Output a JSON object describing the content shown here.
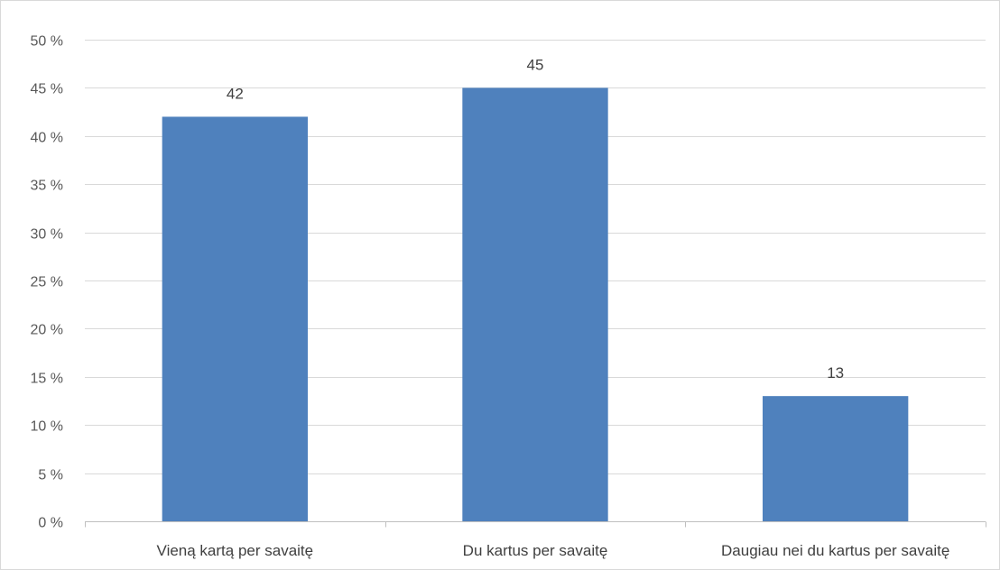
{
  "chart_data": {
    "type": "bar",
    "categories": [
      "Vieną kartą per savaitę",
      "Du kartus per savaitę",
      "Daugiau nei du kartus per savaitę"
    ],
    "values": [
      42,
      45,
      13
    ],
    "data_labels": [
      "42",
      "45",
      "13"
    ],
    "ylim": [
      0,
      50
    ],
    "yticks": [
      0,
      5,
      10,
      15,
      20,
      25,
      30,
      35,
      40,
      45,
      50
    ],
    "ytick_labels": [
      "0 %",
      "5 %",
      "10 %",
      "15 %",
      "20 %",
      "25 %",
      "30 %",
      "35 %",
      "40 %",
      "45 %",
      "50 %"
    ],
    "title": "",
    "xlabel": "",
    "ylabel": "",
    "grid": true,
    "legend": "none",
    "colors": {
      "bar": "#4f81bd",
      "grid": "#d9d9d9",
      "axis": "#bfbfbf"
    }
  }
}
